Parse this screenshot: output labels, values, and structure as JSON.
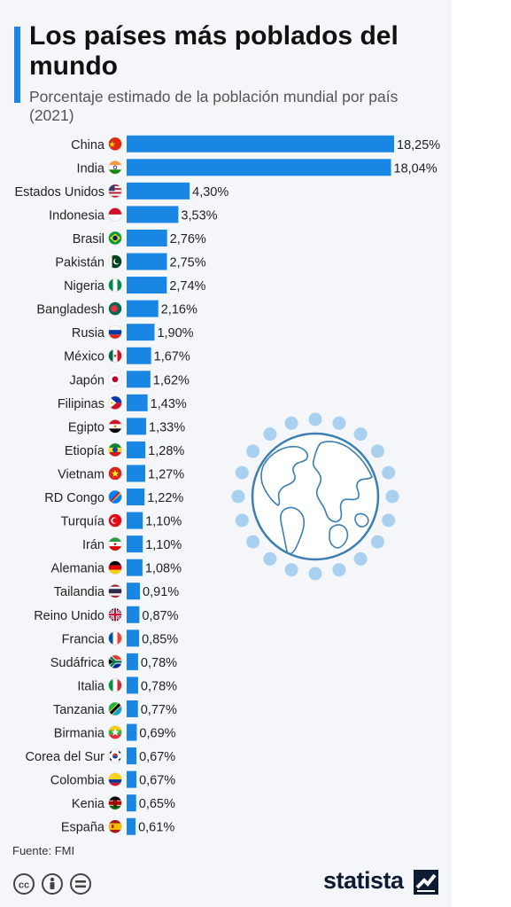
{
  "header": {
    "title": "Los países más poblados del mundo",
    "subtitle": "Porcentaje estimado de la población mundial por país (2021)"
  },
  "footer": {
    "source": "Fuente: FMI",
    "brand": "statista"
  },
  "colors": {
    "bar": "#1a86e3",
    "accent": "#1a86e3",
    "globe": "#3b7fb0",
    "dots": "#a9d0ef"
  },
  "icons": {
    "license": [
      "creative-commons-icon",
      "attribution-icon",
      "no-derivatives-icon"
    ],
    "logo": "statista-logo-icon",
    "illustration": "globe-icon"
  },
  "chart_data": {
    "type": "bar",
    "orientation": "horizontal",
    "title": "Los países más poblados del mundo",
    "subtitle": "Porcentaje estimado de la población mundial por país (2021)",
    "xlim": [
      0,
      18.25
    ],
    "grid": false,
    "categories": [
      "China",
      "India",
      "Estados Unidos",
      "Indonesia",
      "Brasil",
      "Pakistán",
      "Nigeria",
      "Bangladesh",
      "Rusia",
      "México",
      "Japón",
      "Filipinas",
      "Egipto",
      "Etiopía",
      "Vietnam",
      "RD Congo",
      "Turquía",
      "Irán",
      "Alemania",
      "Tailandia",
      "Reino Unido",
      "Francia",
      "Sudáfrica",
      "Italia",
      "Tanzania",
      "Birmania",
      "Corea del Sur",
      "Colombia",
      "Kenia",
      "España"
    ],
    "values": [
      18.25,
      18.04,
      4.3,
      3.53,
      2.76,
      2.75,
      2.74,
      2.16,
      1.9,
      1.67,
      1.62,
      1.43,
      1.33,
      1.28,
      1.27,
      1.22,
      1.1,
      1.1,
      1.08,
      0.91,
      0.87,
      0.85,
      0.78,
      0.78,
      0.77,
      0.69,
      0.67,
      0.67,
      0.65,
      0.61
    ],
    "value_labels": [
      "18,25%",
      "18,04%",
      "4,30%",
      "3,53%",
      "2,76%",
      "2,75%",
      "2,74%",
      "2,16%",
      "1,90%",
      "1,67%",
      "1,62%",
      "1,43%",
      "1,33%",
      "1,28%",
      "1,27%",
      "1,22%",
      "1,10%",
      "1,10%",
      "1,08%",
      "0,91%",
      "0,87%",
      "0,85%",
      "0,78%",
      "0,78%",
      "0,77%",
      "0,69%",
      "0,67%",
      "0,67%",
      "0,65%",
      "0,61%"
    ],
    "flag_icons": [
      "china-flag-icon",
      "india-flag-icon",
      "usa-flag-icon",
      "indonesia-flag-icon",
      "brazil-flag-icon",
      "pakistan-flag-icon",
      "nigeria-flag-icon",
      "bangladesh-flag-icon",
      "russia-flag-icon",
      "mexico-flag-icon",
      "japan-flag-icon",
      "philippines-flag-icon",
      "egypt-flag-icon",
      "ethiopia-flag-icon",
      "vietnam-flag-icon",
      "dr-congo-flag-icon",
      "turkey-flag-icon",
      "iran-flag-icon",
      "germany-flag-icon",
      "thailand-flag-icon",
      "uk-flag-icon",
      "france-flag-icon",
      "south-africa-flag-icon",
      "italy-flag-icon",
      "tanzania-flag-icon",
      "myanmar-flag-icon",
      "south-korea-flag-icon",
      "colombia-flag-icon",
      "kenya-flag-icon",
      "spain-flag-icon"
    ]
  }
}
